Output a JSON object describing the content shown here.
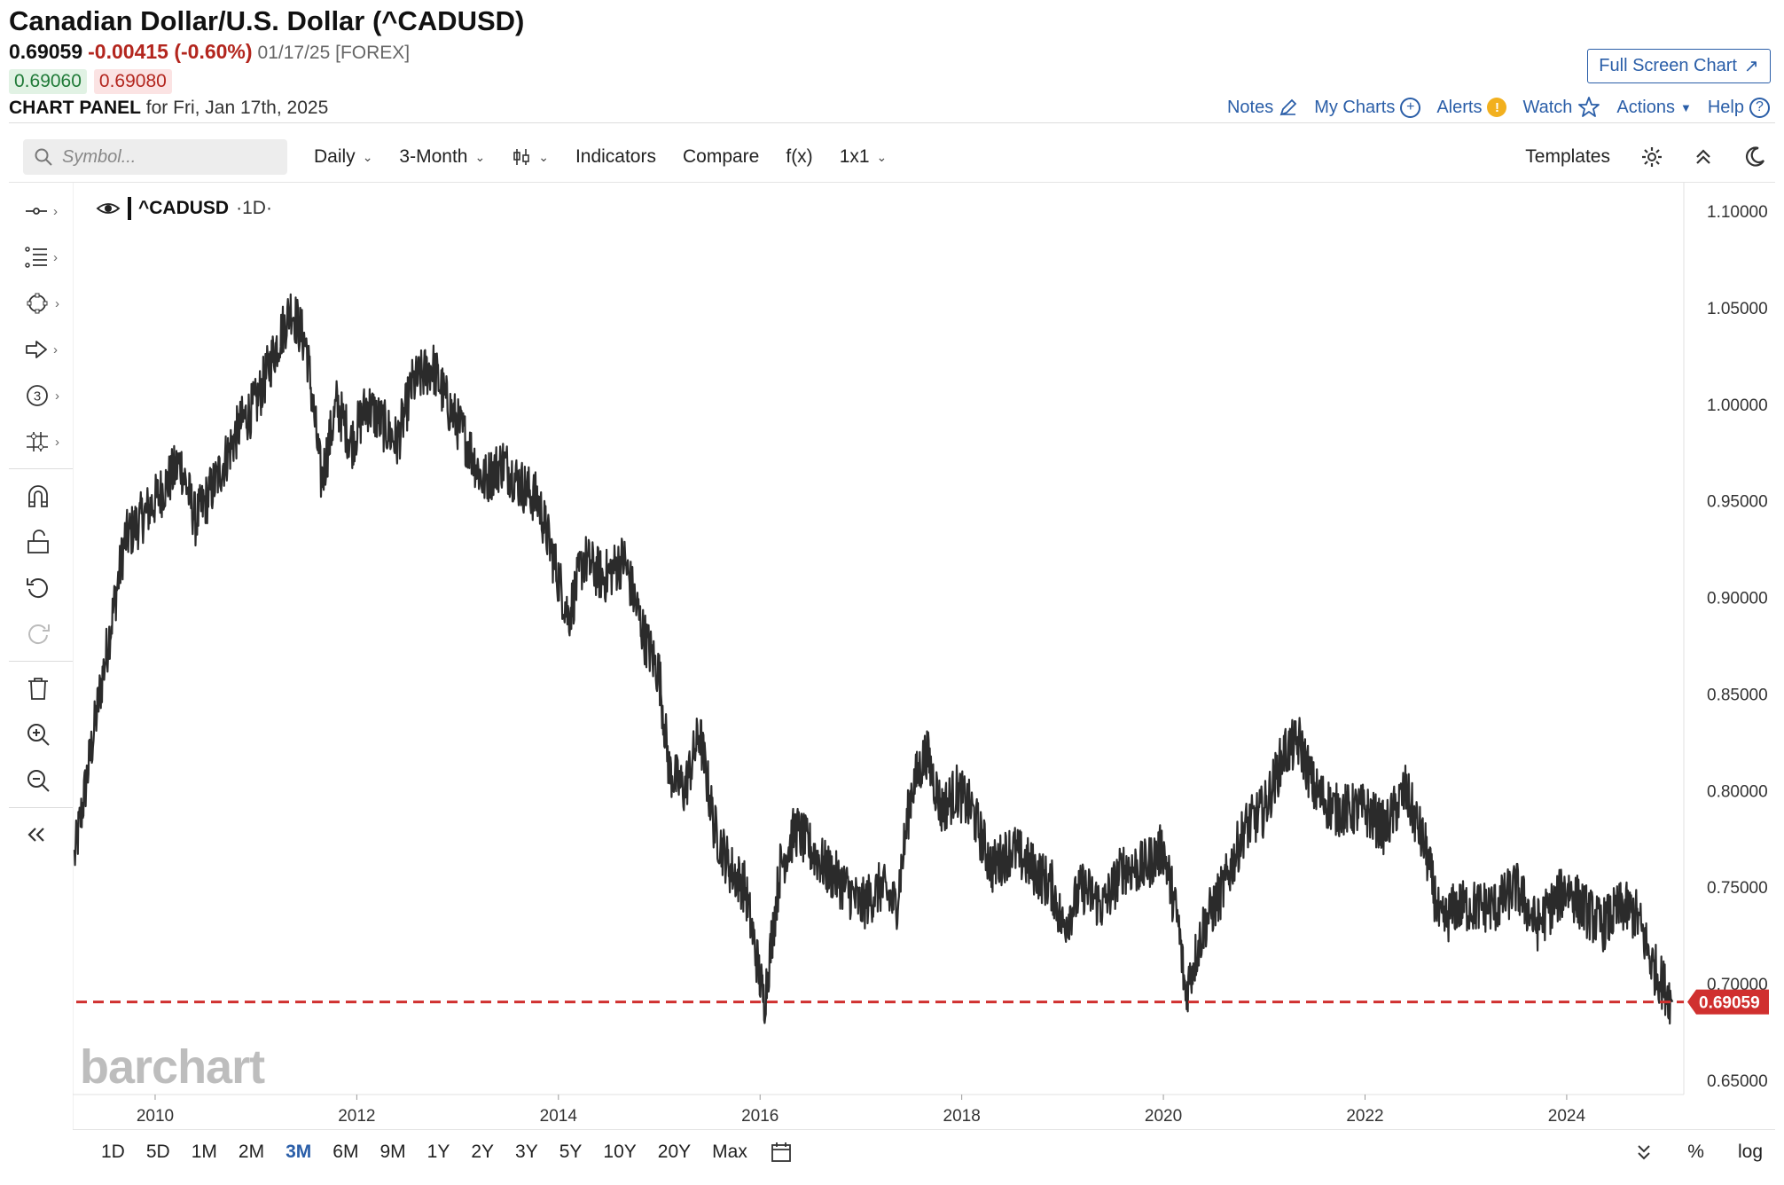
{
  "header": {
    "title": "Canadian Dollar/U.S. Dollar (^CADUSD)",
    "last": "0.69059",
    "change": "-0.00415 (-0.60%)",
    "date_exchange": "01/17/25 [FOREX]",
    "bid": "0.69060",
    "ask": "0.69080",
    "panel_label": "CHART PANEL",
    "panel_for": "for Fri, Jan 17th, 2025",
    "full_screen": "Full Screen Chart"
  },
  "top_links": {
    "notes": "Notes",
    "my_charts": "My Charts",
    "alerts": "Alerts",
    "watch": "Watch",
    "actions": "Actions",
    "help": "Help"
  },
  "toolbar": {
    "search_placeholder": "Symbol...",
    "interval": "Daily",
    "period": "3-Month",
    "indicators": "Indicators",
    "compare": "Compare",
    "fx": "f(x)",
    "layout": "1x1",
    "templates": "Templates"
  },
  "legend": {
    "symbol": "^CADUSD",
    "timeframe": "·1D·"
  },
  "watermark": "barchart",
  "range_buttons": [
    "1D",
    "5D",
    "1M",
    "2M",
    "3M",
    "6M",
    "9M",
    "1Y",
    "2Y",
    "3Y",
    "5Y",
    "10Y",
    "20Y",
    "Max"
  ],
  "range_active": "3M",
  "range_right": {
    "percent": "%",
    "log": "log"
  },
  "colors": {
    "price_line": "#2b2b2b",
    "last_price": "#d0302f",
    "link": "#2a5ea8",
    "up": "#1f7a37",
    "down": "#b3261e"
  },
  "chart_data": {
    "type": "line",
    "series": [
      {
        "name": "^CADUSD",
        "x": [
          2009.2,
          2009.45,
          2009.7,
          2010.0,
          2010.25,
          2010.4,
          2010.6,
          2010.85,
          2011.0,
          2011.2,
          2011.35,
          2011.5,
          2011.65,
          2011.8,
          2011.95,
          2012.1,
          2012.25,
          2012.4,
          2012.55,
          2012.75,
          2012.9,
          2013.1,
          2013.25,
          2013.45,
          2013.6,
          2013.8,
          2014.0,
          2014.1,
          2014.25,
          2014.45,
          2014.65,
          2014.85,
          2015.0,
          2015.1,
          2015.25,
          2015.4,
          2015.55,
          2015.7,
          2015.85,
          2016.04,
          2016.2,
          2016.35,
          2016.5,
          2016.65,
          2016.85,
          2017.0,
          2017.2,
          2017.35,
          2017.5,
          2017.65,
          2017.8,
          2017.95,
          2018.1,
          2018.3,
          2018.5,
          2018.7,
          2018.9,
          2019.0,
          2019.2,
          2019.4,
          2019.6,
          2019.8,
          2020.0,
          2020.15,
          2020.22,
          2020.4,
          2020.6,
          2020.8,
          2021.0,
          2021.2,
          2021.35,
          2021.5,
          2021.7,
          2021.9,
          2022.0,
          2022.2,
          2022.4,
          2022.6,
          2022.75,
          2022.9,
          2023.1,
          2023.3,
          2023.5,
          2023.7,
          2023.85,
          2024.0,
          2024.15,
          2024.35,
          2024.55,
          2024.7,
          2024.85,
          2025.05
        ],
        "values": [
          0.765,
          0.85,
          0.93,
          0.95,
          0.97,
          0.94,
          0.96,
          0.99,
          1.0,
          1.03,
          1.05,
          1.03,
          0.96,
          1.0,
          0.98,
          1.0,
          0.99,
          0.98,
          1.01,
          1.02,
          1.0,
          0.98,
          0.96,
          0.97,
          0.96,
          0.95,
          0.91,
          0.89,
          0.92,
          0.91,
          0.92,
          0.88,
          0.86,
          0.81,
          0.8,
          0.83,
          0.78,
          0.76,
          0.75,
          0.69,
          0.76,
          0.78,
          0.77,
          0.76,
          0.75,
          0.74,
          0.75,
          0.74,
          0.8,
          0.82,
          0.79,
          0.8,
          0.79,
          0.76,
          0.77,
          0.76,
          0.75,
          0.73,
          0.75,
          0.74,
          0.76,
          0.76,
          0.77,
          0.73,
          0.695,
          0.73,
          0.75,
          0.78,
          0.79,
          0.82,
          0.825,
          0.8,
          0.79,
          0.79,
          0.79,
          0.78,
          0.8,
          0.77,
          0.73,
          0.74,
          0.74,
          0.74,
          0.75,
          0.73,
          0.74,
          0.75,
          0.74,
          0.73,
          0.74,
          0.735,
          0.71,
          0.69059
        ]
      }
    ],
    "x_ticks": [
      "2010",
      "2012",
      "2014",
      "2016",
      "2018",
      "2020",
      "2022",
      "2024"
    ],
    "x_tick_values": [
      2010,
      2012,
      2014,
      2016,
      2018,
      2020,
      2022,
      2024
    ],
    "xlim": [
      2009.2,
      2025.1
    ],
    "y_ticks": [
      "1.10000",
      "1.05000",
      "1.00000",
      "0.95000",
      "0.90000",
      "0.85000",
      "0.80000",
      "0.75000",
      "0.70000",
      "0.65000"
    ],
    "y_tick_values": [
      1.1,
      1.05,
      1.0,
      0.95,
      0.9,
      0.85,
      0.8,
      0.75,
      0.7,
      0.65
    ],
    "ylim": [
      0.65,
      1.1
    ],
    "last_price": 0.69059,
    "last_price_label": "0.69059",
    "grid": false
  }
}
